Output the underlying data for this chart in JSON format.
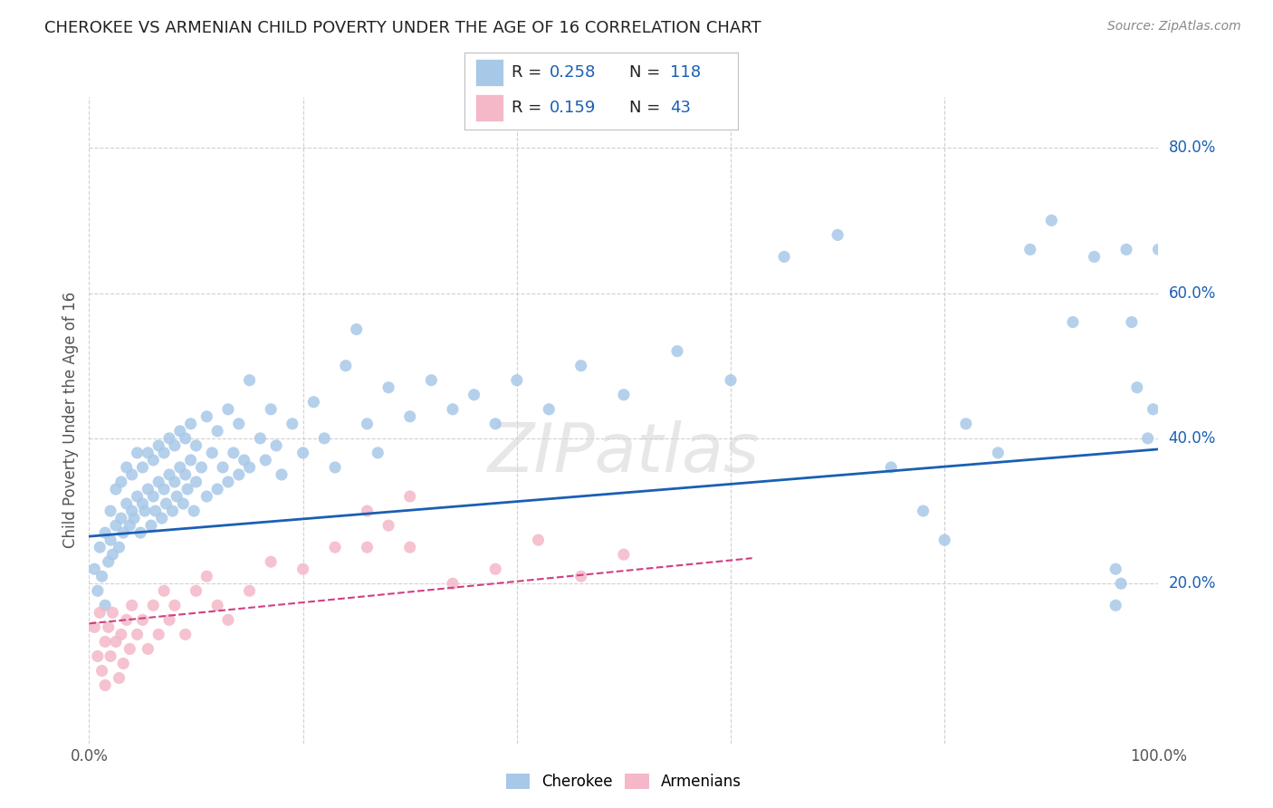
{
  "title": "CHEROKEE VS ARMENIAN CHILD POVERTY UNDER THE AGE OF 16 CORRELATION CHART",
  "source": "Source: ZipAtlas.com",
  "ylabel": "Child Poverty Under the Age of 16",
  "xlim": [
    0.0,
    1.0
  ],
  "ylim": [
    -0.02,
    0.87
  ],
  "yticks": [
    0.2,
    0.4,
    0.6,
    0.8
  ],
  "yticklabels": [
    "20.0%",
    "40.0%",
    "60.0%",
    "80.0%"
  ],
  "cherokee_R": 0.258,
  "cherokee_N": 118,
  "armenian_R": 0.159,
  "armenian_N": 43,
  "cherokee_color": "#a8c8e8",
  "armenian_color": "#f4b8c8",
  "cherokee_line_color": "#1a5fb4",
  "armenian_line_color": "#d04080",
  "legend_text_color": "#1a5fb4",
  "cherokee_scatter_x": [
    0.005,
    0.008,
    0.01,
    0.012,
    0.015,
    0.015,
    0.018,
    0.02,
    0.02,
    0.022,
    0.025,
    0.025,
    0.028,
    0.03,
    0.03,
    0.032,
    0.035,
    0.035,
    0.038,
    0.04,
    0.04,
    0.042,
    0.045,
    0.045,
    0.048,
    0.05,
    0.05,
    0.052,
    0.055,
    0.055,
    0.058,
    0.06,
    0.06,
    0.062,
    0.065,
    0.065,
    0.068,
    0.07,
    0.07,
    0.072,
    0.075,
    0.075,
    0.078,
    0.08,
    0.08,
    0.082,
    0.085,
    0.085,
    0.088,
    0.09,
    0.09,
    0.092,
    0.095,
    0.095,
    0.098,
    0.1,
    0.1,
    0.105,
    0.11,
    0.11,
    0.115,
    0.12,
    0.12,
    0.125,
    0.13,
    0.13,
    0.135,
    0.14,
    0.14,
    0.145,
    0.15,
    0.15,
    0.16,
    0.165,
    0.17,
    0.175,
    0.18,
    0.19,
    0.2,
    0.21,
    0.22,
    0.23,
    0.24,
    0.25,
    0.26,
    0.27,
    0.28,
    0.3,
    0.32,
    0.34,
    0.36,
    0.38,
    0.4,
    0.43,
    0.46,
    0.5,
    0.55,
    0.6,
    0.65,
    0.7,
    0.75,
    0.78,
    0.8,
    0.82,
    0.85,
    0.88,
    0.9,
    0.92,
    0.94,
    0.96,
    0.96,
    0.965,
    0.97,
    0.975,
    0.98,
    0.99,
    0.995,
    1.0
  ],
  "cherokee_scatter_y": [
    0.22,
    0.19,
    0.25,
    0.21,
    0.17,
    0.27,
    0.23,
    0.26,
    0.3,
    0.24,
    0.28,
    0.33,
    0.25,
    0.29,
    0.34,
    0.27,
    0.31,
    0.36,
    0.28,
    0.3,
    0.35,
    0.29,
    0.32,
    0.38,
    0.27,
    0.31,
    0.36,
    0.3,
    0.33,
    0.38,
    0.28,
    0.32,
    0.37,
    0.3,
    0.34,
    0.39,
    0.29,
    0.33,
    0.38,
    0.31,
    0.35,
    0.4,
    0.3,
    0.34,
    0.39,
    0.32,
    0.36,
    0.41,
    0.31,
    0.35,
    0.4,
    0.33,
    0.37,
    0.42,
    0.3,
    0.34,
    0.39,
    0.36,
    0.32,
    0.43,
    0.38,
    0.33,
    0.41,
    0.36,
    0.34,
    0.44,
    0.38,
    0.35,
    0.42,
    0.37,
    0.36,
    0.48,
    0.4,
    0.37,
    0.44,
    0.39,
    0.35,
    0.42,
    0.38,
    0.45,
    0.4,
    0.36,
    0.5,
    0.55,
    0.42,
    0.38,
    0.47,
    0.43,
    0.48,
    0.44,
    0.46,
    0.42,
    0.48,
    0.44,
    0.5,
    0.46,
    0.52,
    0.48,
    0.65,
    0.68,
    0.36,
    0.3,
    0.26,
    0.42,
    0.38,
    0.66,
    0.7,
    0.56,
    0.65,
    0.17,
    0.22,
    0.2,
    0.66,
    0.56,
    0.47,
    0.4,
    0.44,
    0.66
  ],
  "armenian_scatter_x": [
    0.005,
    0.008,
    0.01,
    0.012,
    0.015,
    0.015,
    0.018,
    0.02,
    0.022,
    0.025,
    0.028,
    0.03,
    0.032,
    0.035,
    0.038,
    0.04,
    0.045,
    0.05,
    0.055,
    0.06,
    0.065,
    0.07,
    0.075,
    0.08,
    0.09,
    0.1,
    0.11,
    0.12,
    0.13,
    0.15,
    0.17,
    0.2,
    0.23,
    0.26,
    0.3,
    0.34,
    0.38,
    0.42,
    0.46,
    0.5,
    0.26,
    0.28,
    0.3
  ],
  "armenian_scatter_y": [
    0.14,
    0.1,
    0.16,
    0.08,
    0.12,
    0.06,
    0.14,
    0.1,
    0.16,
    0.12,
    0.07,
    0.13,
    0.09,
    0.15,
    0.11,
    0.17,
    0.13,
    0.15,
    0.11,
    0.17,
    0.13,
    0.19,
    0.15,
    0.17,
    0.13,
    0.19,
    0.21,
    0.17,
    0.15,
    0.19,
    0.23,
    0.22,
    0.25,
    0.3,
    0.25,
    0.2,
    0.22,
    0.26,
    0.21,
    0.24,
    0.25,
    0.28,
    0.32
  ],
  "cherokee_trend_x": [
    0.0,
    1.0
  ],
  "cherokee_trend_y": [
    0.265,
    0.385
  ],
  "armenian_trend_x": [
    0.0,
    0.62
  ],
  "armenian_trend_y": [
    0.145,
    0.235
  ],
  "watermark_text": "ZIPatlas",
  "background_color": "#ffffff",
  "grid_color": "#d0d0d0"
}
